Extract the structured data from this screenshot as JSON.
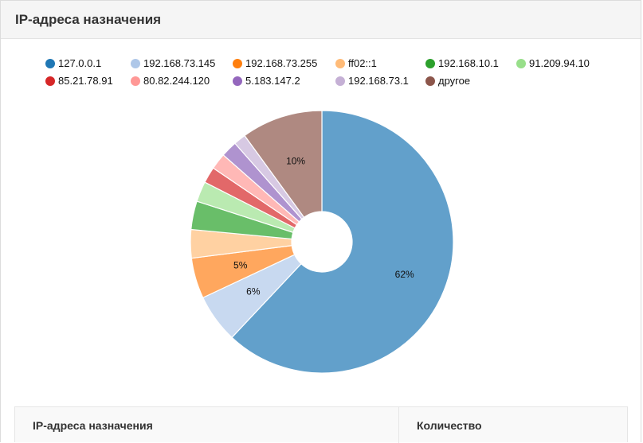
{
  "panel": {
    "title": "IP-адреса назначения"
  },
  "chart_data": {
    "type": "pie",
    "donut": true,
    "legend_position": "top",
    "categories": [
      "127.0.0.1",
      "192.168.73.145",
      "192.168.73.255",
      "ff02::1",
      "192.168.10.1",
      "91.209.94.10",
      "85.21.78.91",
      "80.82.244.120",
      "5.183.147.2",
      "192.168.73.1",
      "другое"
    ],
    "values": [
      62,
      6,
      5,
      3.5,
      3.5,
      2.5,
      2,
      2,
      2,
      1.5,
      10
    ],
    "colors": [
      "#1f77b4",
      "#aec7e8",
      "#ff7f0e",
      "#ffbb78",
      "#2ca02c",
      "#98df8a",
      "#d62728",
      "#ff9896",
      "#9467bd",
      "#c5b0d5",
      "#8c564b"
    ],
    "slice_colors": [
      "#62a0cb",
      "#c8d9f0",
      "#ffa75e",
      "#ffd1a2",
      "#69be69",
      "#baeab1",
      "#e26869",
      "#ffb8b6",
      "#af93cf",
      "#d7c9e3",
      "#af8981"
    ],
    "data_labels": [
      {
        "index": 0,
        "text": "62%"
      },
      {
        "index": 1,
        "text": "6%"
      },
      {
        "index": 2,
        "text": "5%"
      },
      {
        "index": 10,
        "text": "10%"
      }
    ]
  },
  "table": {
    "columns": [
      "IP-адреса назначения",
      "Количество"
    ]
  }
}
